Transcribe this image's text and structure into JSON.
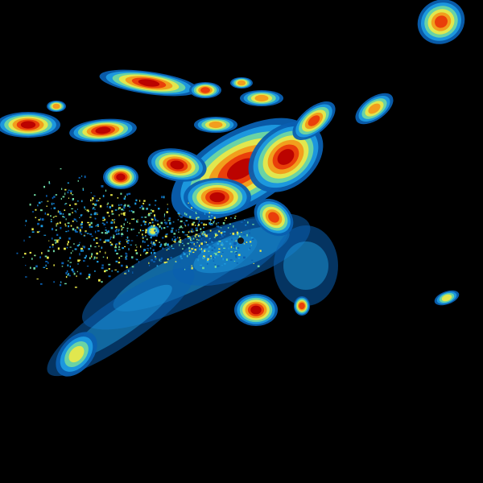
{
  "radar": {
    "background": "#000000",
    "color_scale": [
      "#0a5fb0",
      "#1e9be0",
      "#6fd6a0",
      "#e8e84a",
      "#f29a1a",
      "#e83a0a",
      "#b80000"
    ],
    "site_marker_color": "#111111"
  }
}
